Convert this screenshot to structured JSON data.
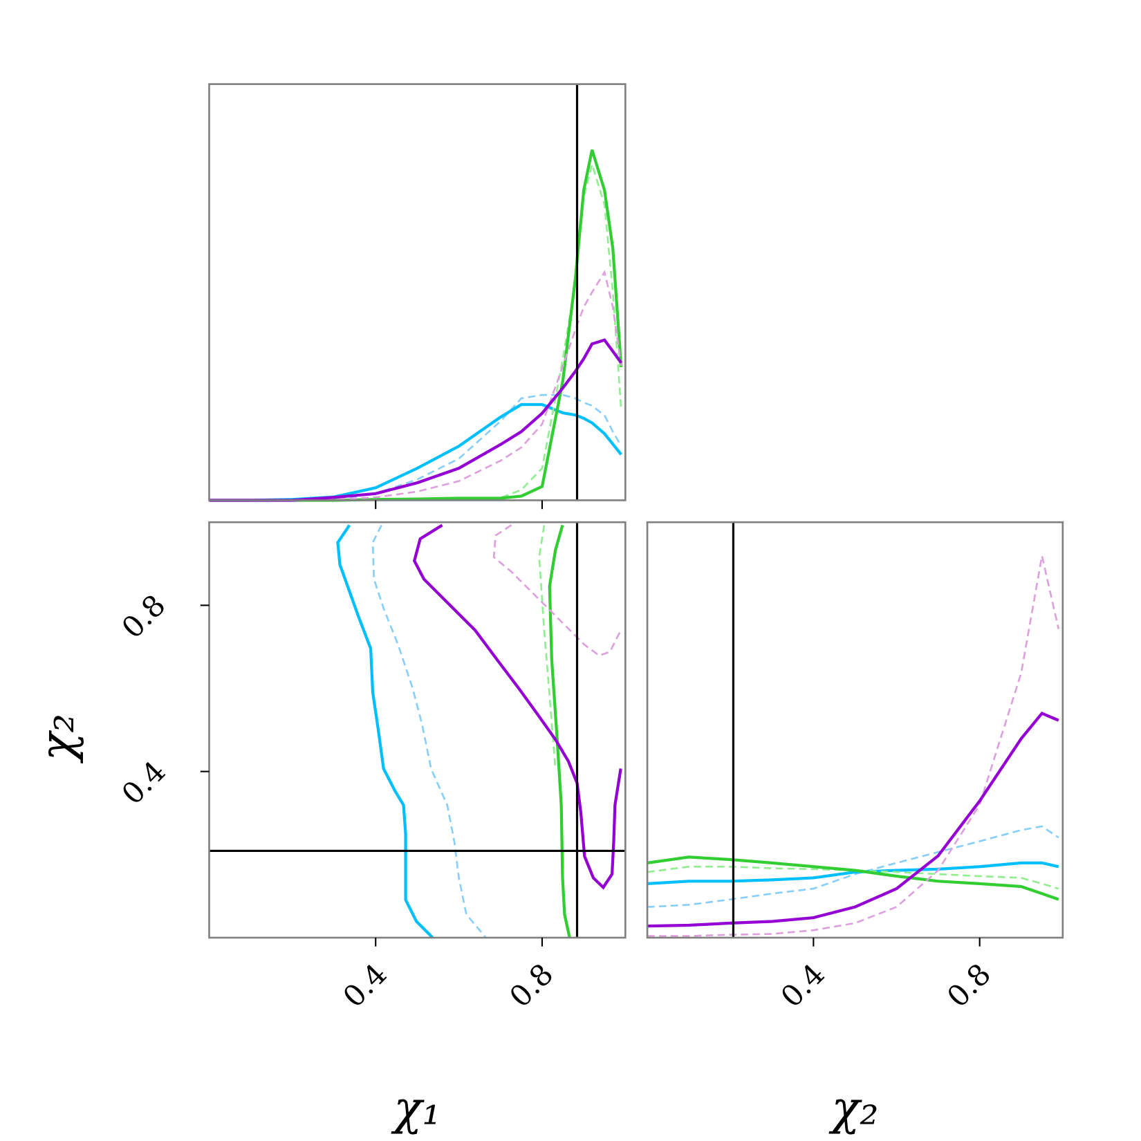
{
  "chart_data": [
    {
      "type": "line",
      "xlim": [
        0,
        1
      ],
      "ylim": [
        0,
        1
      ],
      "truth_x": [
        0.884
      ],
      "x": [
        0,
        0.1,
        0.2,
        0.3,
        0.4,
        0.5,
        0.6,
        0.7,
        0.75,
        0.8,
        0.85,
        0.88,
        0.9,
        0.92,
        0.95,
        0.97,
        0.99
      ],
      "series": [
        {
          "color": "#87cefa",
          "dashed": true,
          "values": [
            0,
            0,
            0,
            0.003,
            0.016,
            0.05,
            0.1,
            0.19,
            0.245,
            0.253,
            0.253,
            0.245,
            0.235,
            0.227,
            0.204,
            0.165,
            0.13
          ]
        },
        {
          "color": "#00bfff",
          "dashed": false,
          "values": [
            0,
            0,
            0.002,
            0.008,
            0.03,
            0.077,
            0.13,
            0.2,
            0.23,
            0.23,
            0.21,
            0.205,
            0.197,
            0.186,
            0.16,
            0.135,
            0.11
          ]
        },
        {
          "color": "#90ee90",
          "dashed": true,
          "values": [
            0,
            0,
            0,
            0,
            0.002,
            0.003,
            0.004,
            0.006,
            0.025,
            0.077,
            0.34,
            0.525,
            0.728,
            0.807,
            0.71,
            0.5,
            0.218
          ]
        },
        {
          "color": "#32cd32",
          "dashed": false,
          "values": [
            0,
            0,
            0,
            0,
            0.002,
            0.003,
            0.005,
            0.005,
            0.01,
            0.033,
            0.288,
            0.534,
            0.745,
            0.842,
            0.745,
            0.605,
            0.32
          ]
        },
        {
          "color": "#dda0dd",
          "dashed": true,
          "values": [
            0,
            0,
            0,
            0.002,
            0.007,
            0.021,
            0.046,
            0.095,
            0.127,
            0.183,
            0.323,
            0.41,
            0.464,
            0.5,
            0.548,
            0.464,
            0.323
          ]
        },
        {
          "color": "#9400d3",
          "dashed": false,
          "values": [
            0,
            0,
            0,
            0.007,
            0.016,
            0.042,
            0.077,
            0.134,
            0.165,
            0.209,
            0.27,
            0.31,
            0.34,
            0.376,
            0.385,
            0.358,
            0.33
          ]
        }
      ]
    },
    {
      "type": "contour",
      "xlim": [
        0,
        1
      ],
      "ylim": [
        0,
        1
      ],
      "xticks": [
        0.4,
        0.8
      ],
      "yticks": [
        0.4,
        0.8
      ],
      "xlabel": "χ₁",
      "ylabel": "χ₂",
      "truth_x": [
        0.884
      ],
      "truth_y": [
        0.209
      ],
      "series": [
        {
          "color": "#87cefa",
          "dashed": true,
          "x": [
            0.414,
            0.393,
            0.396,
            0.419,
            0.454,
            0.489,
            0.512,
            0.533,
            0.572,
            0.589,
            0.6,
            0.618,
            0.665
          ],
          "y": [
            0.993,
            0.951,
            0.863,
            0.793,
            0.705,
            0.6,
            0.512,
            0.407,
            0.319,
            0.232,
            0.144,
            0.056,
            0
          ]
        },
        {
          "color": "#00bfff",
          "dashed": false,
          "x": [
            0.337,
            0.309,
            0.314,
            0.358,
            0.388,
            0.393,
            0.407,
            0.419,
            0.446,
            0.467,
            0.472,
            0.472,
            0.498,
            0.537
          ],
          "y": [
            0.993,
            0.951,
            0.898,
            0.775,
            0.696,
            0.591,
            0.495,
            0.407,
            0.354,
            0.319,
            0.249,
            0.091,
            0.039,
            0
          ]
        },
        {
          "color": "#90ee90",
          "dashed": true,
          "x": [
            0.805,
            0.793,
            0.805,
            0.818,
            0.832
          ],
          "y": [
            0.993,
            0.916,
            0.74,
            0.582,
            0.407
          ]
        },
        {
          "color": "#32cd32",
          "dashed": false,
          "x": [
            0.849,
            0.832,
            0.818,
            0.823,
            0.835,
            0.846,
            0.849,
            0.854,
            0.866
          ],
          "y": [
            0.993,
            0.933,
            0.846,
            0.67,
            0.495,
            0.319,
            0.144,
            0.056,
            0
          ]
        },
        {
          "color": "#dda0dd",
          "dashed": true,
          "x": [
            0.726,
            0.688,
            0.684,
            0.726,
            0.788,
            0.849,
            0.902,
            0.937,
            0.963,
            0.989
          ],
          "y": [
            0.993,
            0.968,
            0.916,
            0.881,
            0.819,
            0.758,
            0.705,
            0.679,
            0.688,
            0.74
          ]
        },
        {
          "color": "#9400d3",
          "dashed": false,
          "x": [
            0.56,
            0.507,
            0.493,
            0.516,
            0.568,
            0.639,
            0.691,
            0.744,
            0.788,
            0.832,
            0.863,
            0.884,
            0.893,
            0.902,
            0.923,
            0.947,
            0.968,
            0.972,
            0.975,
            0.989
          ],
          "y": [
            0.993,
            0.96,
            0.907,
            0.863,
            0.811,
            0.74,
            0.67,
            0.6,
            0.539,
            0.477,
            0.425,
            0.372,
            0.302,
            0.196,
            0.144,
            0.121,
            0.153,
            0.232,
            0.319,
            0.407
          ]
        }
      ]
    },
    {
      "type": "line",
      "xlim": [
        0,
        1
      ],
      "ylim": [
        0,
        1
      ],
      "xticks": [
        0.4,
        0.8
      ],
      "xlabel": "χ₂",
      "truth_x": [
        0.207
      ],
      "x": [
        0,
        0.1,
        0.2,
        0.3,
        0.4,
        0.5,
        0.6,
        0.7,
        0.8,
        0.9,
        0.95,
        0.99
      ],
      "series": [
        {
          "color": "#87cefa",
          "dashed": true,
          "values": [
            0.074,
            0.079,
            0.092,
            0.106,
            0.118,
            0.153,
            0.18,
            0.206,
            0.232,
            0.259,
            0.268,
            0.241
          ]
        },
        {
          "color": "#00bfff",
          "dashed": false,
          "values": [
            0.13,
            0.136,
            0.136,
            0.139,
            0.144,
            0.158,
            0.162,
            0.165,
            0.171,
            0.18,
            0.18,
            0.171
          ]
        },
        {
          "color": "#90ee90",
          "dashed": true,
          "values": [
            0.158,
            0.171,
            0.171,
            0.167,
            0.165,
            0.162,
            0.158,
            0.153,
            0.148,
            0.144,
            0.13,
            0.118
          ]
        },
        {
          "color": "#32cd32",
          "dashed": false,
          "values": [
            0.18,
            0.194,
            0.188,
            0.18,
            0.171,
            0.162,
            0.148,
            0.136,
            0.13,
            0.123,
            0.106,
            0.092
          ]
        },
        {
          "color": "#dda0dd",
          "dashed": true,
          "values": [
            0.004,
            0.004,
            0.007,
            0.009,
            0.018,
            0.035,
            0.074,
            0.162,
            0.32,
            0.637,
            0.919,
            0.743
          ]
        },
        {
          "color": "#9400d3",
          "dashed": false,
          "values": [
            0.028,
            0.03,
            0.035,
            0.039,
            0.048,
            0.074,
            0.118,
            0.197,
            0.329,
            0.479,
            0.54,
            0.523
          ]
        }
      ]
    }
  ]
}
